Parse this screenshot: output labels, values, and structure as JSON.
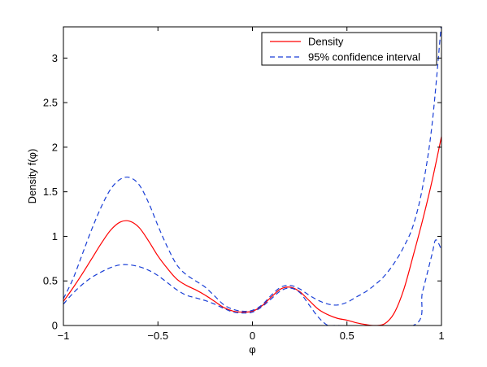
{
  "chart_data": {
    "type": "line",
    "title": "",
    "xlabel": "φ",
    "ylabel": "Density f(φ)",
    "xlim": [
      -1,
      1
    ],
    "ylim": [
      0,
      3.35
    ],
    "xticks": [
      -1,
      -0.5,
      0,
      0.5,
      1
    ],
    "xtick_labels": [
      "−1",
      "−0.5",
      "0",
      "0.5",
      "1"
    ],
    "yticks": [
      0,
      0.5,
      1,
      1.5,
      2,
      2.5,
      3
    ],
    "ytick_labels": [
      "0",
      "0.5",
      "1",
      "1.5",
      "2",
      "2.5",
      "3"
    ],
    "grid": false,
    "legend_position": "top-right",
    "series": [
      {
        "name": "Density",
        "color": "#ff0000",
        "style": "solid",
        "x": [
          -1.0,
          -0.95,
          -0.9,
          -0.85,
          -0.8,
          -0.75,
          -0.7,
          -0.65,
          -0.6,
          -0.55,
          -0.5,
          -0.45,
          -0.4,
          -0.35,
          -0.3,
          -0.25,
          -0.2,
          -0.15,
          -0.1,
          -0.05,
          0.0,
          0.05,
          0.1,
          0.15,
          0.2,
          0.25,
          0.3,
          0.35,
          0.4,
          0.45,
          0.5,
          0.55,
          0.6,
          0.65,
          0.7,
          0.75,
          0.8,
          0.85,
          0.9,
          0.95,
          1.0
        ],
        "values": [
          0.27,
          0.42,
          0.58,
          0.75,
          0.92,
          1.07,
          1.16,
          1.17,
          1.1,
          0.95,
          0.78,
          0.64,
          0.52,
          0.45,
          0.4,
          0.34,
          0.27,
          0.2,
          0.16,
          0.15,
          0.16,
          0.22,
          0.32,
          0.41,
          0.43,
          0.38,
          0.28,
          0.18,
          0.12,
          0.08,
          0.06,
          0.03,
          0.01,
          0.0,
          0.02,
          0.14,
          0.4,
          0.78,
          1.18,
          1.62,
          2.12
        ]
      },
      {
        "name": "95% confidence interval",
        "color": "#1a3fd6",
        "style": "dashed",
        "x": [
          -1.0,
          -0.95,
          -0.9,
          -0.85,
          -0.8,
          -0.75,
          -0.7,
          -0.65,
          -0.6,
          -0.55,
          -0.5,
          -0.45,
          -0.4,
          -0.35,
          -0.3,
          -0.25,
          -0.2,
          -0.15,
          -0.1,
          -0.05,
          0.0,
          0.05,
          0.1,
          0.15,
          0.2,
          0.25,
          0.3,
          0.35,
          0.4,
          0.45,
          0.5,
          0.55,
          0.6,
          0.65,
          0.7,
          0.75,
          0.8,
          0.85,
          0.9,
          0.95,
          1.0
        ],
        "values": [
          0.3,
          0.52,
          0.8,
          1.08,
          1.33,
          1.53,
          1.64,
          1.66,
          1.58,
          1.38,
          1.12,
          0.88,
          0.68,
          0.57,
          0.5,
          0.43,
          0.33,
          0.23,
          0.18,
          0.16,
          0.17,
          0.23,
          0.34,
          0.43,
          0.45,
          0.41,
          0.34,
          0.28,
          0.24,
          0.23,
          0.26,
          0.32,
          0.38,
          0.46,
          0.56,
          0.7,
          0.88,
          1.12,
          1.55,
          2.25,
          3.4
        ]
      },
      {
        "name": "",
        "color": "#1a3fd6",
        "style": "dashed",
        "x": [
          -1.0,
          -0.95,
          -0.9,
          -0.85,
          -0.8,
          -0.75,
          -0.7,
          -0.65,
          -0.6,
          -0.55,
          -0.5,
          -0.45,
          -0.4,
          -0.35,
          -0.3,
          -0.25,
          -0.2,
          -0.15,
          -0.1,
          -0.05,
          0.0,
          0.05,
          0.1,
          0.15,
          0.2,
          0.25,
          0.3,
          0.35,
          0.4,
          0.45,
          0.85,
          0.9,
          0.95,
          0.97,
          1.0
        ],
        "values": [
          0.24,
          0.36,
          0.46,
          0.54,
          0.6,
          0.65,
          0.68,
          0.68,
          0.66,
          0.62,
          0.56,
          0.48,
          0.4,
          0.34,
          0.31,
          0.28,
          0.24,
          0.19,
          0.15,
          0.14,
          0.15,
          0.21,
          0.3,
          0.39,
          0.42,
          0.37,
          0.23,
          0.09,
          0.0,
          0.0,
          0.0,
          0.38,
          0.8,
          0.96,
          0.85
        ]
      }
    ]
  }
}
